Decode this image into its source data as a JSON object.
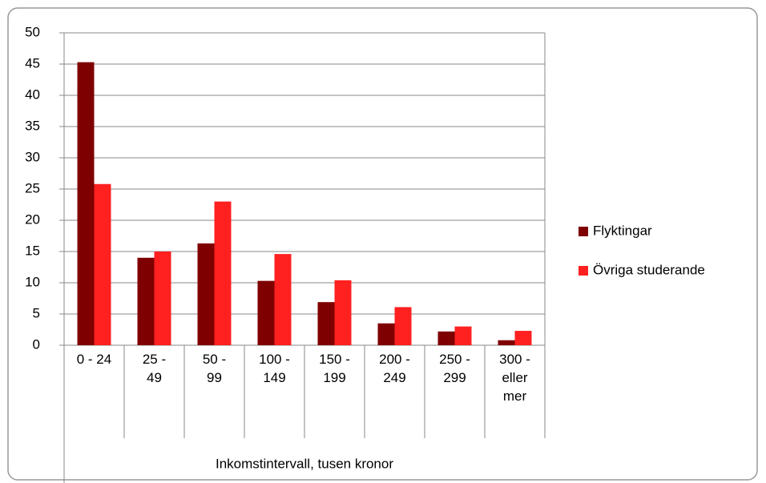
{
  "chart_data": {
    "type": "bar",
    "x_label": "Inkomstintervall, tusen kronor",
    "categories": [
      "0 - 24",
      "25 - 49",
      "50 - 99",
      "100 - 149",
      "150 - 199",
      "200 - 249",
      "250 - 299",
      "300 - eller mer"
    ],
    "series": [
      {
        "name": "Flyktingar",
        "color": "#7f0000",
        "values": [
          45.3,
          14.0,
          16.3,
          10.3,
          6.9,
          3.5,
          2.2,
          0.8
        ]
      },
      {
        "name": "Övriga studerande",
        "color": "#ff2020",
        "values": [
          25.8,
          15.0,
          23.0,
          14.6,
          10.4,
          6.1,
          3.0,
          2.3
        ]
      }
    ],
    "ylim": [
      0,
      50
    ],
    "yticks": [
      0,
      5,
      10,
      15,
      20,
      25,
      30,
      35,
      40,
      45,
      50
    ],
    "grid": true,
    "legend": "right"
  }
}
